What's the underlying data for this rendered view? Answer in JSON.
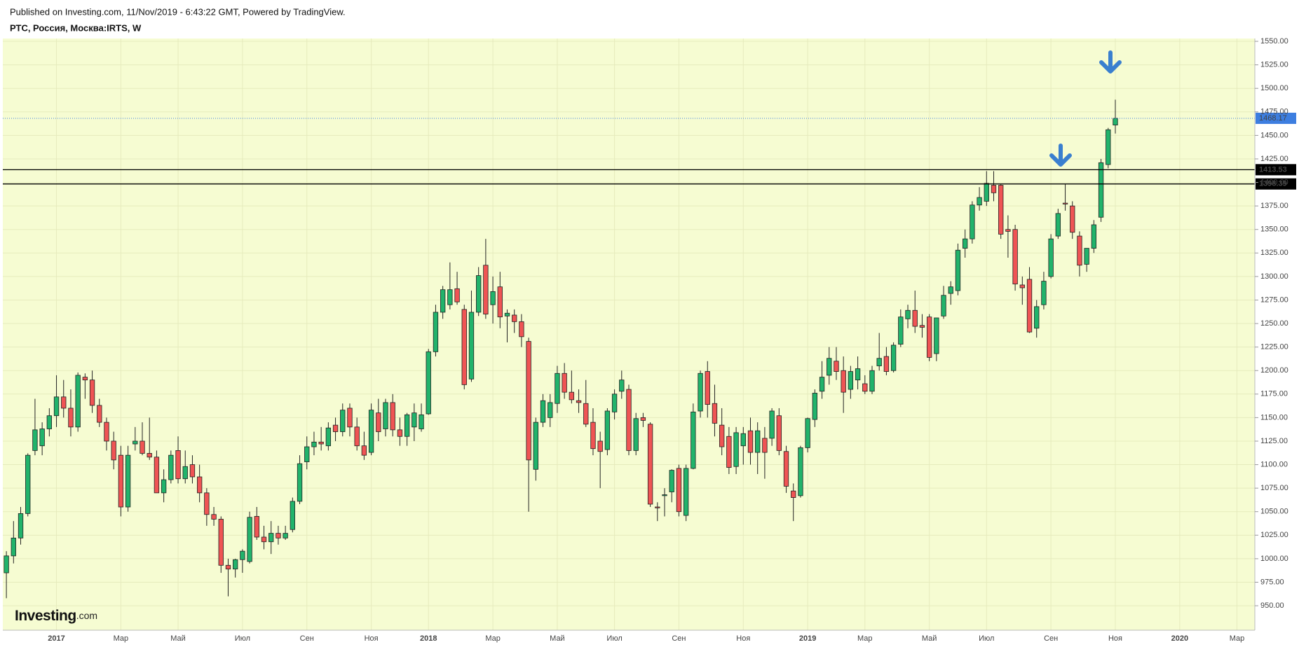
{
  "chart_data": {
    "type": "candlestick",
    "title": "Published on Investing.com, 11/Nov/2019 - 6:43:22 GMT, Powered by TradingView.",
    "subtitle": "РТС, Россия, Москва:IRTS, W",
    "watermark": "Investing",
    "watermark_suffix": ".com",
    "categories": [
      null,
      null,
      null,
      null,
      null,
      null,
      null,
      "2017",
      null,
      null,
      null,
      null,
      null,
      null,
      null,
      null,
      "Мар",
      null,
      null,
      null,
      null,
      null,
      null,
      null,
      "Май",
      null,
      null,
      null,
      null,
      null,
      null,
      null,
      null,
      "Июл",
      null,
      null,
      null,
      null,
      null,
      null,
      null,
      null,
      "Сен",
      null,
      null,
      null,
      null,
      null,
      null,
      null,
      null,
      "Ноя",
      null,
      null,
      null,
      null,
      null,
      null,
      null,
      "2018",
      null,
      null,
      null,
      null,
      null,
      null,
      null,
      null,
      "Мар",
      null,
      null,
      null,
      null,
      null,
      null,
      null,
      null,
      "Май",
      null,
      null,
      null,
      null,
      null,
      null,
      null,
      "Июл",
      null,
      null,
      null,
      null,
      null,
      null,
      null,
      null,
      "Сен",
      null,
      null,
      null,
      null,
      null,
      null,
      null,
      null,
      "Ноя",
      null,
      null,
      null,
      null,
      null,
      null,
      null,
      null,
      "2019",
      null,
      null,
      null,
      null,
      null,
      null,
      null,
      "Мар",
      null,
      null,
      null,
      null,
      null,
      null,
      null,
      null,
      "Май",
      null,
      null,
      null,
      null,
      null,
      null,
      null,
      "Июл",
      null,
      null,
      null,
      null,
      null,
      null,
      null,
      null,
      "Сен",
      null,
      null,
      null,
      null,
      null,
      null,
      null,
      null,
      "Ноя",
      null,
      null,
      null,
      null,
      null,
      null,
      null,
      null,
      "2020",
      null,
      null,
      null,
      null,
      null,
      null,
      null,
      "Мар",
      null,
      null
    ],
    "open": [
      985,
      1003,
      1022,
      1048,
      1115,
      1120,
      1138,
      1152,
      1172,
      1160,
      1140,
      1193,
      1190,
      1163,
      1145,
      1125,
      1110,
      1055,
      1122,
      1125,
      1112,
      1108,
      1070,
      1084,
      1115,
      1085,
      1100,
      1087,
      1070,
      1047,
      1042,
      993,
      989,
      999,
      997,
      1045,
      1023,
      1018,
      1027,
      1022,
      1031,
      1061,
      1103,
      1119,
      1124,
      1120,
      1142,
      1135,
      1160,
      1140,
      1120,
      1113,
      1155,
      1138,
      1166,
      1137,
      1130,
      1140,
      1138,
      1154,
      1220,
      1262,
      1270,
      1287,
      1265,
      1191,
      1262,
      1312,
      1270,
      1289,
      1258,
      1259,
      1252,
      1231,
      1095,
      1145,
      1150,
      1165,
      1197,
      1177,
      1168,
      1165,
      1145,
      1125,
      1116,
      1156,
      1178,
      1180,
      1115,
      1150,
      1143,
      1055,
      1067,
      1071,
      1096,
      1046,
      1096,
      1157,
      1199,
      1165,
      1142,
      1130,
      1098,
      1120,
      1136,
      1113,
      1128,
      1128,
      1152,
      1114,
      1072,
      1067,
      1118,
      1148,
      1178,
      1195,
      1210,
      1200,
      1180,
      1190,
      1186,
      1178,
      1205,
      1215,
      1200,
      1228,
      1255,
      1264,
      1248,
      1257,
      1218,
      1258,
      1282,
      1285,
      1330,
      1340,
      1376,
      1380,
      1397,
      1397,
      1350,
      1350,
      1291,
      1297,
      1245,
      1270,
      1300,
      1343,
      1378,
      1375,
      1343,
      1313,
      1330,
      1363,
      1419,
      1461,
      null,
      null,
      null,
      null,
      null,
      null,
      null,
      null,
      null,
      null,
      null,
      null,
      null,
      null,
      null,
      null,
      null,
      null,
      null
    ],
    "high": [
      1008,
      1040,
      1055,
      1112,
      1170,
      1145,
      1160,
      1195,
      1190,
      1180,
      1198,
      1197,
      1200,
      1170,
      1150,
      1135,
      1120,
      1120,
      1140,
      1145,
      1150,
      1115,
      1095,
      1115,
      1130,
      1115,
      1110,
      1100,
      1075,
      1055,
      1045,
      1000,
      1000,
      1010,
      1050,
      1055,
      1035,
      1040,
      1035,
      1035,
      1065,
      1110,
      1130,
      1135,
      1140,
      1145,
      1150,
      1165,
      1165,
      1150,
      1135,
      1165,
      1170,
      1170,
      1175,
      1150,
      1155,
      1165,
      1165,
      1223,
      1270,
      1290,
      1315,
      1305,
      1270,
      1285,
      1310,
      1340,
      1300,
      1305,
      1265,
      1265,
      1260,
      1235,
      1150,
      1175,
      1175,
      1205,
      1208,
      1200,
      1180,
      1190,
      1160,
      1135,
      1160,
      1180,
      1200,
      1185,
      1155,
      1155,
      1145,
      1060,
      1075,
      1095,
      1100,
      1100,
      1165,
      1200,
      1210,
      1185,
      1160,
      1140,
      1140,
      1140,
      1150,
      1145,
      1140,
      1160,
      1160,
      1120,
      1080,
      1120,
      1150,
      1180,
      1210,
      1225,
      1225,
      1215,
      1205,
      1215,
      1195,
      1205,
      1240,
      1225,
      1230,
      1265,
      1270,
      1285,
      1260,
      1260,
      1255,
      1290,
      1295,
      1335,
      1350,
      1380,
      1395,
      1412,
      1412,
      1398,
      1365,
      1355,
      1300,
      1310,
      1275,
      1305,
      1345,
      1372,
      1398,
      1380,
      1348,
      1330,
      1360,
      1425,
      1458,
      1488,
      null,
      null,
      null,
      null,
      null,
      null,
      null,
      null,
      null,
      null,
      null,
      null,
      null,
      null,
      null,
      null,
      null,
      null,
      null
    ],
    "low": [
      958,
      995,
      1015,
      1045,
      1110,
      1110,
      1130,
      1140,
      1150,
      1130,
      1135,
      1170,
      1155,
      1140,
      1115,
      1095,
      1045,
      1050,
      1115,
      1110,
      1105,
      1070,
      1060,
      1080,
      1080,
      1080,
      1080,
      1060,
      1035,
      1035,
      985,
      960,
      980,
      985,
      995,
      1020,
      1010,
      1005,
      1015,
      1020,
      1028,
      1058,
      1095,
      1110,
      1115,
      1115,
      1125,
      1130,
      1130,
      1115,
      1105,
      1110,
      1125,
      1130,
      1130,
      1120,
      1120,
      1125,
      1135,
      1153,
      1215,
      1255,
      1265,
      1270,
      1180,
      1188,
      1258,
      1255,
      1250,
      1245,
      1230,
      1240,
      1225,
      1050,
      1083,
      1140,
      1140,
      1155,
      1170,
      1165,
      1155,
      1140,
      1110,
      1075,
      1110,
      1148,
      1170,
      1110,
      1110,
      1140,
      1055,
      1040,
      1045,
      1060,
      1045,
      1040,
      1095,
      1150,
      1150,
      1130,
      1110,
      1090,
      1090,
      1100,
      1100,
      1090,
      1085,
      1120,
      1110,
      1070,
      1040,
      1065,
      1113,
      1140,
      1170,
      1185,
      1190,
      1155,
      1170,
      1180,
      1175,
      1175,
      1200,
      1195,
      1198,
      1225,
      1245,
      1240,
      1235,
      1210,
      1210,
      1255,
      1270,
      1280,
      1320,
      1335,
      1370,
      1375,
      1380,
      1340,
      1320,
      1285,
      1270,
      1240,
      1235,
      1265,
      1298,
      1340,
      1370,
      1340,
      1300,
      1305,
      1325,
      1358,
      1415,
      1452,
      null,
      null,
      null,
      null,
      null,
      null,
      null,
      null,
      null,
      null,
      null,
      null,
      null,
      null,
      null,
      null,
      null,
      null,
      null
    ],
    "close": [
      1003,
      1022,
      1048,
      1110,
      1137,
      1138,
      1152,
      1172,
      1160,
      1140,
      1195,
      1190,
      1163,
      1145,
      1125,
      1105,
      1055,
      1110,
      1125,
      1112,
      1108,
      1070,
      1084,
      1110,
      1085,
      1098,
      1087,
      1070,
      1047,
      1042,
      993,
      989,
      999,
      1008,
      1044,
      1023,
      1018,
      1027,
      1022,
      1027,
      1061,
      1101,
      1119,
      1124,
      1122,
      1139,
      1135,
      1158,
      1140,
      1120,
      1110,
      1158,
      1135,
      1166,
      1137,
      1130,
      1153,
      1155,
      1153,
      1220,
      1262,
      1286,
      1286,
      1273,
      1185,
      1262,
      1301,
      1260,
      1284,
      1257,
      1261,
      1252,
      1236,
      1105,
      1145,
      1168,
      1166,
      1197,
      1177,
      1169,
      1166,
      1143,
      1117,
      1114,
      1157,
      1175,
      1190,
      1115,
      1149,
      1147,
      1058,
      1054,
      1068,
      1094,
      1050,
      1096,
      1156,
      1197,
      1164,
      1144,
      1119,
      1097,
      1134,
      1133,
      1113,
      1136,
      1113,
      1157,
      1115,
      1077,
      1065,
      1118,
      1149,
      1176,
      1193,
      1213,
      1199,
      1177,
      1199,
      1202,
      1178,
      1200,
      1213,
      1199,
      1227,
      1257,
      1264,
      1247,
      1246,
      1214,
      1256,
      1280,
      1289,
      1328,
      1340,
      1376,
      1384,
      1399,
      1389,
      1345,
      1348,
      1292,
      1288,
      1241,
      1268,
      1295,
      1340,
      1367,
      1377,
      1347,
      1312,
      1330,
      1355,
      1421,
      1456,
      1468.17,
      null,
      null,
      null,
      null,
      null,
      null,
      null,
      null,
      null,
      null,
      null,
      null,
      null,
      null,
      null,
      null,
      null,
      null,
      null
    ],
    "up_color": "#21b36b",
    "down_color": "#ef5454",
    "ylim": [
      924,
      1553
    ],
    "yticks": [
      {
        "value": 950,
        "label": "950.00"
      },
      {
        "value": 975,
        "label": "975.00"
      },
      {
        "value": 1000,
        "label": "1000.00"
      },
      {
        "value": 1025,
        "label": "1025.00"
      },
      {
        "value": 1050,
        "label": "1050.00"
      },
      {
        "value": 1075,
        "label": "1075.00"
      },
      {
        "value": 1100,
        "label": "1100.00"
      },
      {
        "value": 1125,
        "label": "1125.00"
      },
      {
        "value": 1150,
        "label": "1150.00"
      },
      {
        "value": 1175,
        "label": "1175.00"
      },
      {
        "value": 1200,
        "label": "1200.00"
      },
      {
        "value": 1225,
        "label": "1225.00"
      },
      {
        "value": 1250,
        "label": "1250.00"
      },
      {
        "value": 1275,
        "label": "1275.00"
      },
      {
        "value": 1300,
        "label": "1300.00"
      },
      {
        "value": 1325,
        "label": "1325.00"
      },
      {
        "value": 1350,
        "label": "1350.00"
      },
      {
        "value": 1375,
        "label": "1375.00"
      },
      {
        "value": 1400,
        "label": "1400.00"
      },
      {
        "value": 1425,
        "label": "1425.00"
      },
      {
        "value": 1450,
        "label": "1450.00"
      },
      {
        "value": 1475,
        "label": "1475.00"
      },
      {
        "value": 1500,
        "label": "1500.00"
      },
      {
        "value": 1525,
        "label": "1525.00"
      },
      {
        "value": 1550,
        "label": "1550.00"
      }
    ],
    "hlines": [
      {
        "value": 1413.53,
        "color": "#000000"
      },
      {
        "value": 1398.39,
        "color": "#000000"
      }
    ],
    "last_price": {
      "value": 1468.17,
      "color": "#3d7ee0"
    },
    "grid": true
  }
}
